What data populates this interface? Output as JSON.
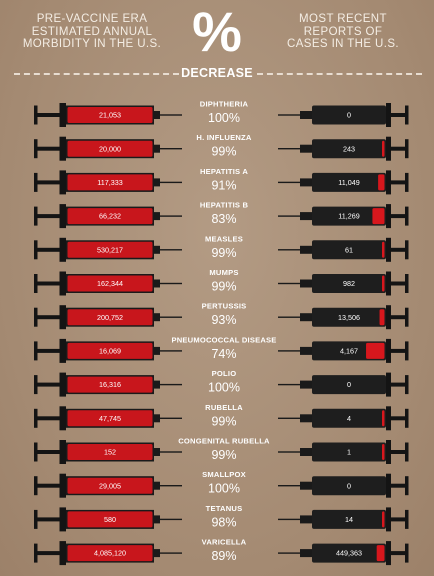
{
  "header": {
    "left": "PRE-VACCINE ERA\nESTIMATED ANNUAL\nMORBIDITY IN THE U.S.",
    "symbol": "%",
    "right": "MOST RECENT\nREPORTS OF\nCASES IN THE U.S.",
    "center_label": "DECREASE"
  },
  "colors": {
    "background": "#a88f78",
    "syringe_left": "#c8161c",
    "syringe_right": "#1e1e1e",
    "fill_right": "#d7171d",
    "text": "#ffffff"
  },
  "chart_data": {
    "type": "table",
    "columns": [
      "Pre-vaccine era estimated annual morbidity in the U.S.",
      "% Decrease",
      "Most recent reports of cases in the U.S."
    ],
    "rows": [
      {
        "disease": "DIPHTHERIA",
        "pre_vaccine": "21,053",
        "decrease": "100%",
        "recent": "0",
        "recent_fill": 0.0
      },
      {
        "disease": "H. INFLUENZA",
        "pre_vaccine": "20,000",
        "decrease": "99%",
        "recent": "243",
        "recent_fill": 0.01
      },
      {
        "disease": "HEPATITIS A",
        "pre_vaccine": "117,333",
        "decrease": "91%",
        "recent": "11,049",
        "recent_fill": 0.09
      },
      {
        "disease": "HEPATITIS B",
        "pre_vaccine": "66,232",
        "decrease": "83%",
        "recent": "11,269",
        "recent_fill": 0.17
      },
      {
        "disease": "MEASLES",
        "pre_vaccine": "530,217",
        "decrease": "99%",
        "recent": "61",
        "recent_fill": 0.01
      },
      {
        "disease": "MUMPS",
        "pre_vaccine": "162,344",
        "decrease": "99%",
        "recent": "982",
        "recent_fill": 0.01
      },
      {
        "disease": "PERTUSSIS",
        "pre_vaccine": "200,752",
        "decrease": "93%",
        "recent": "13,506",
        "recent_fill": 0.07
      },
      {
        "disease": "PNEUMOCOCCAL DISEASE",
        "pre_vaccine": "16,069",
        "decrease": "74%",
        "recent": "4,167",
        "recent_fill": 0.26
      },
      {
        "disease": "POLIO",
        "pre_vaccine": "16,316",
        "decrease": "100%",
        "recent": "0",
        "recent_fill": 0.0
      },
      {
        "disease": "RUBELLA",
        "pre_vaccine": "47,745",
        "decrease": "99%",
        "recent": "4",
        "recent_fill": 0.01
      },
      {
        "disease": "CONGENITAL RUBELLA",
        "pre_vaccine": "152",
        "decrease": "99%",
        "recent": "1",
        "recent_fill": 0.01
      },
      {
        "disease": "SMALLPOX",
        "pre_vaccine": "29,005",
        "decrease": "100%",
        "recent": "0",
        "recent_fill": 0.0
      },
      {
        "disease": "TETANUS",
        "pre_vaccine": "580",
        "decrease": "98%",
        "recent": "14",
        "recent_fill": 0.02
      },
      {
        "disease": "VARICELLA",
        "pre_vaccine": "4,085,120",
        "decrease": "89%",
        "recent": "449,363",
        "recent_fill": 0.11
      }
    ]
  }
}
